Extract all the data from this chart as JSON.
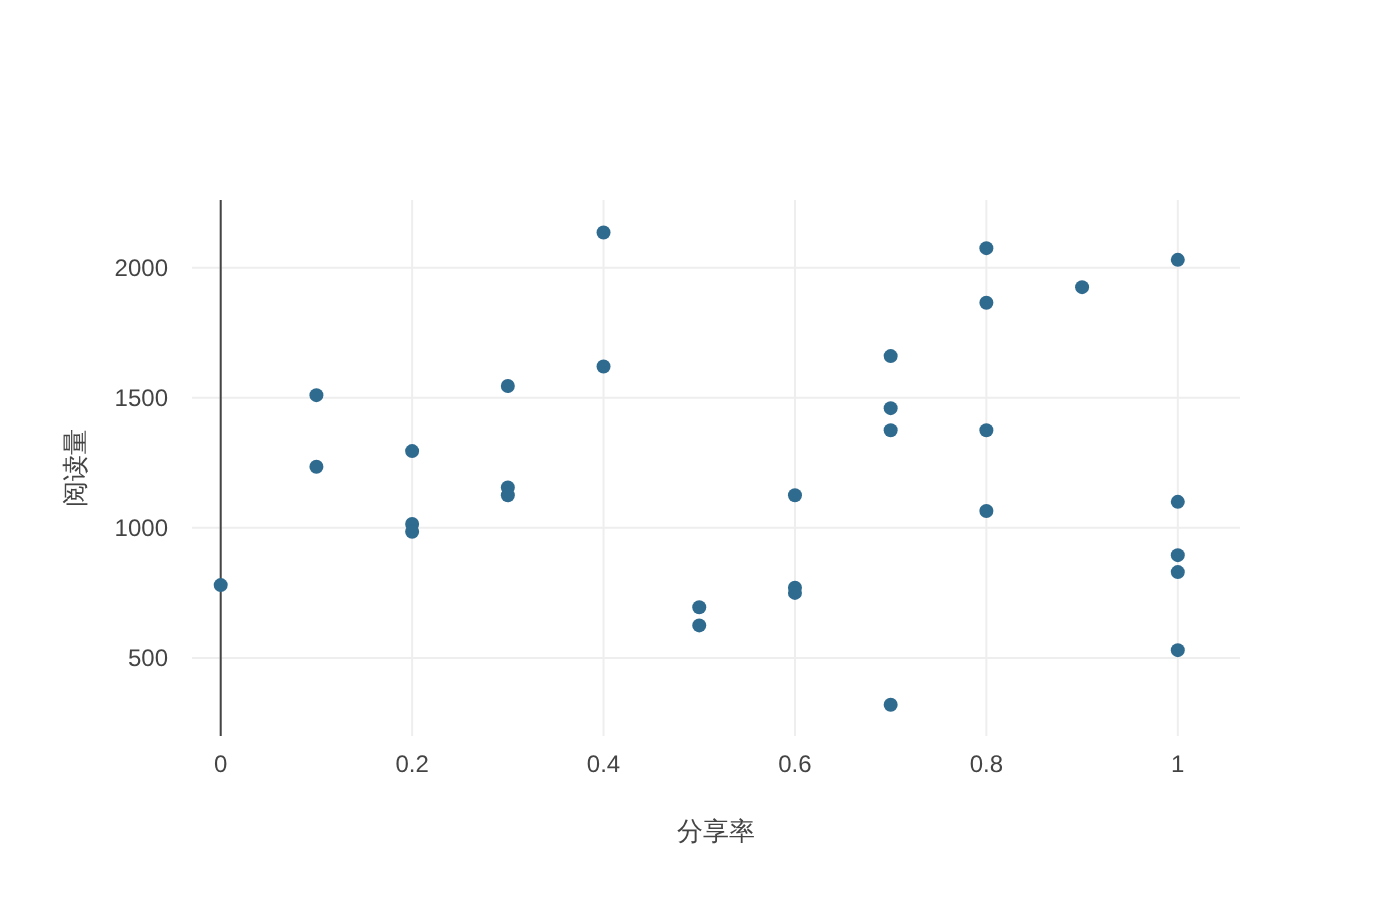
{
  "chart_data": {
    "type": "scatter",
    "xlabel": "分享率",
    "ylabel": "阅读量",
    "xlim": [
      -0.03,
      1.065
    ],
    "ylim": [
      200,
      2260
    ],
    "xticks": [
      0,
      0.2,
      0.4,
      0.6,
      0.8,
      1
    ],
    "yticks": [
      500,
      1000,
      1500,
      2000
    ],
    "grid": true,
    "marker": "circle",
    "series": [
      {
        "color": "#2f6a8f",
        "x": [
          0,
          0.1,
          0.1,
          0.2,
          0.2,
          0.2,
          0.3,
          0.3,
          0.3,
          0.4,
          0.4,
          0.5,
          0.5,
          0.6,
          0.6,
          0.6,
          0.7,
          0.7,
          0.7,
          0.7,
          0.8,
          0.8,
          0.8,
          0.8,
          0.9,
          1,
          1,
          1,
          1,
          1
        ],
        "values": [
          780,
          1510,
          1235,
          1295,
          1015,
          985,
          1545,
          1155,
          1125,
          2135,
          1620,
          695,
          625,
          1125,
          770,
          750,
          1660,
          1460,
          1375,
          320,
          2075,
          1865,
          1375,
          1065,
          1925,
          2030,
          1100,
          895,
          830,
          530
        ]
      }
    ]
  }
}
